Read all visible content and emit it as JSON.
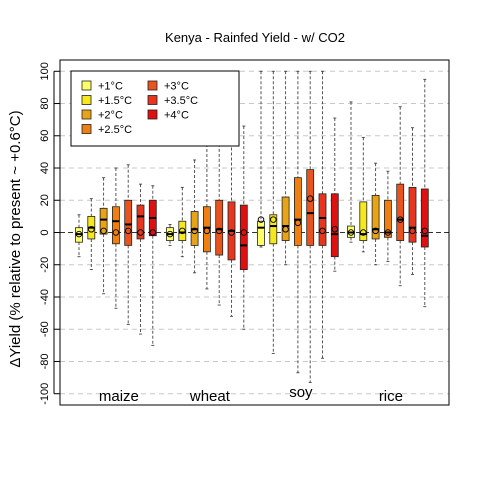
{
  "chart_data": {
    "type": "box",
    "title": "Kenya - Rainfed Yield - w/ CO2",
    "ylabel": "ΔYield (% relative to present ~ +0.6°C)",
    "xlabel": "",
    "ylim": [
      -107,
      107
    ],
    "y_ticks": [
      "-100",
      "-80",
      "-60",
      "-40",
      "-20",
      "0",
      "20",
      "40",
      "60",
      "80",
      "100"
    ],
    "grid": "horizontal dashed",
    "legend_position": "top-left",
    "groups": [
      "maize",
      "wheat",
      "soy",
      "rice"
    ],
    "series": [
      {
        "name": "+1°C",
        "color": "#ffff66"
      },
      {
        "name": "+1.5°C",
        "color": "#f5e81e"
      },
      {
        "name": "+2°C",
        "color": "#e8a317"
      },
      {
        "name": "+2.5°C",
        "color": "#f07f12"
      },
      {
        "name": "+3°C",
        "color": "#e8531e"
      },
      {
        "name": "+3.5°C",
        "color": "#e8361e"
      },
      {
        "name": "+4°C",
        "color": "#e01010"
      }
    ],
    "boxes": [
      {
        "group": "maize",
        "series": 0,
        "min": -15,
        "q1": -6,
        "median": -1,
        "q3": 3,
        "max": 11,
        "mean": -1
      },
      {
        "group": "maize",
        "series": 1,
        "min": -23,
        "q1": -4,
        "median": 3,
        "q3": 10,
        "max": 21,
        "mean": 2
      },
      {
        "group": "maize",
        "series": 2,
        "min": -38,
        "q1": -1,
        "median": 8,
        "q3": 15,
        "max": 34,
        "mean": 1
      },
      {
        "group": "maize",
        "series": 3,
        "min": -47,
        "q1": -7,
        "median": 7,
        "q3": 16,
        "max": 40,
        "mean": 0
      },
      {
        "group": "maize",
        "series": 4,
        "min": -57,
        "q1": -8,
        "median": 5,
        "q3": 20,
        "max": 42,
        "mean": 1
      },
      {
        "group": "maize",
        "series": 5,
        "min": -63,
        "q1": -4,
        "median": 10,
        "q3": 17,
        "max": 30,
        "mean": 0
      },
      {
        "group": "maize",
        "series": 6,
        "min": -70,
        "q1": -2,
        "median": 9,
        "q3": 20,
        "max": 29,
        "mean": 0
      },
      {
        "group": "wheat",
        "series": 0,
        "min": -8,
        "q1": -5,
        "median": -1,
        "q3": 3,
        "max": 5,
        "mean": -1
      },
      {
        "group": "wheat",
        "series": 1,
        "min": -15,
        "q1": -5,
        "median": 0,
        "q3": 7,
        "max": 28,
        "mean": 1
      },
      {
        "group": "wheat",
        "series": 2,
        "min": -25,
        "q1": -8,
        "median": 2,
        "q3": 13,
        "max": 45,
        "mean": 1
      },
      {
        "group": "wheat",
        "series": 3,
        "min": -35,
        "q1": -12,
        "median": 3,
        "q3": 16,
        "max": 58,
        "mean": 1
      },
      {
        "group": "wheat",
        "series": 4,
        "min": -45,
        "q1": -14,
        "median": 2,
        "q3": 20,
        "max": 86,
        "mean": 1
      },
      {
        "group": "wheat",
        "series": 5,
        "min": -52,
        "q1": -17,
        "median": 1,
        "q3": 19,
        "max": 62,
        "mean": 0
      },
      {
        "group": "wheat",
        "series": 6,
        "min": -60,
        "q1": -23,
        "median": -8,
        "q3": 17,
        "max": 66,
        "mean": 0
      },
      {
        "group": "soy",
        "series": 0,
        "min": -9,
        "q1": -8,
        "median": 3,
        "q3": 7,
        "max": 100,
        "mean": 8
      },
      {
        "group": "soy",
        "series": 1,
        "min": -75,
        "q1": -7,
        "median": 4,
        "q3": 11,
        "max": 100,
        "mean": 8
      },
      {
        "group": "soy",
        "series": 2,
        "min": -20,
        "q1": -5,
        "median": 4,
        "q3": 22,
        "max": 100,
        "mean": 2
      },
      {
        "group": "soy",
        "series": 3,
        "min": -87,
        "q1": -8,
        "median": 8,
        "q3": 34,
        "max": 100,
        "mean": 6
      },
      {
        "group": "soy",
        "series": 4,
        "min": -93,
        "q1": -8,
        "median": 12,
        "q3": 39,
        "max": 100,
        "mean": 21
      },
      {
        "group": "soy",
        "series": 5,
        "min": -78,
        "q1": -8,
        "median": 9,
        "q3": 24,
        "max": 100,
        "mean": 1
      },
      {
        "group": "soy",
        "series": 6,
        "min": -24,
        "q1": -15,
        "median": -1,
        "q3": 24,
        "max": 71,
        "mean": 2
      },
      {
        "group": "rice",
        "series": 0,
        "min": -6,
        "q1": -3,
        "median": 0,
        "q3": 4,
        "max": 81,
        "mean": 0
      },
      {
        "group": "rice",
        "series": 1,
        "min": -12,
        "q1": -5,
        "median": -1,
        "q3": 19,
        "max": 59,
        "mean": 0
      },
      {
        "group": "rice",
        "series": 2,
        "min": -20,
        "q1": -4,
        "median": 2,
        "q3": 23,
        "max": 43,
        "mean": 1
      },
      {
        "group": "rice",
        "series": 3,
        "min": -18,
        "q1": -3,
        "median": 0,
        "q3": 20,
        "max": 38,
        "mean": 0
      },
      {
        "group": "rice",
        "series": 4,
        "min": -33,
        "q1": -5,
        "median": 8,
        "q3": 30,
        "max": 78,
        "mean": 8
      },
      {
        "group": "rice",
        "series": 5,
        "min": -26,
        "q1": -6,
        "median": 3,
        "q3": 28,
        "max": 65,
        "mean": 1
      },
      {
        "group": "rice",
        "series": 6,
        "min": -46,
        "q1": -9,
        "median": -2,
        "q3": 27,
        "max": 95,
        "mean": 1
      }
    ]
  }
}
